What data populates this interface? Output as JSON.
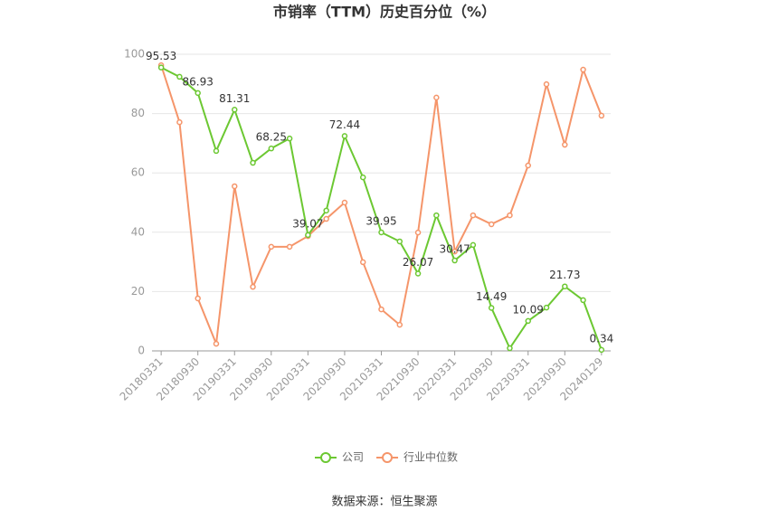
{
  "chart_data": {
    "type": "line",
    "title": "市销率（TTM）历史百分位（%）",
    "categories": [
      "20180331",
      null,
      "20180930",
      null,
      "20190331",
      null,
      "20190930",
      null,
      "20200331",
      null,
      "20200930",
      null,
      "20210331",
      null,
      "20210930",
      null,
      "20220331",
      null,
      "20220930",
      null,
      "20230331",
      null,
      "20230930",
      null,
      "20240129"
    ],
    "series": [
      {
        "name": "公司",
        "color": "#6cc832",
        "values": [
          95.53,
          92.4,
          86.93,
          67.4,
          81.31,
          63.4,
          68.25,
          71.6,
          39.07,
          47.3,
          72.44,
          58.5,
          39.95,
          36.9,
          26.07,
          45.7,
          30.47,
          35.7,
          14.49,
          0.9,
          10.09,
          14.6,
          21.73,
          17.1,
          0.34
        ],
        "value_labels": [
          "95.53",
          null,
          "86.93",
          null,
          "81.31",
          null,
          "68.25",
          null,
          "39.07",
          null,
          "72.44",
          null,
          "39.95",
          null,
          "26.07",
          null,
          "30.47",
          null,
          "14.49",
          null,
          "10.09",
          null,
          "21.73",
          null,
          "0.34"
        ]
      },
      {
        "name": "行业中位数",
        "color": "#f5956a",
        "values": [
          96.3,
          77.1,
          17.7,
          2.4,
          55.5,
          21.6,
          35.1,
          35.1,
          38.7,
          44.5,
          50.0,
          29.9,
          14.0,
          8.8,
          39.9,
          85.4,
          33.5,
          45.7,
          42.7,
          45.7,
          62.5,
          89.9,
          69.5,
          94.8,
          79.3
        ]
      }
    ],
    "ylim": [
      0,
      100
    ],
    "yticks": [
      0,
      20,
      40,
      60,
      80,
      100
    ],
    "grid": true,
    "source": "数据来源：恒生聚源"
  }
}
